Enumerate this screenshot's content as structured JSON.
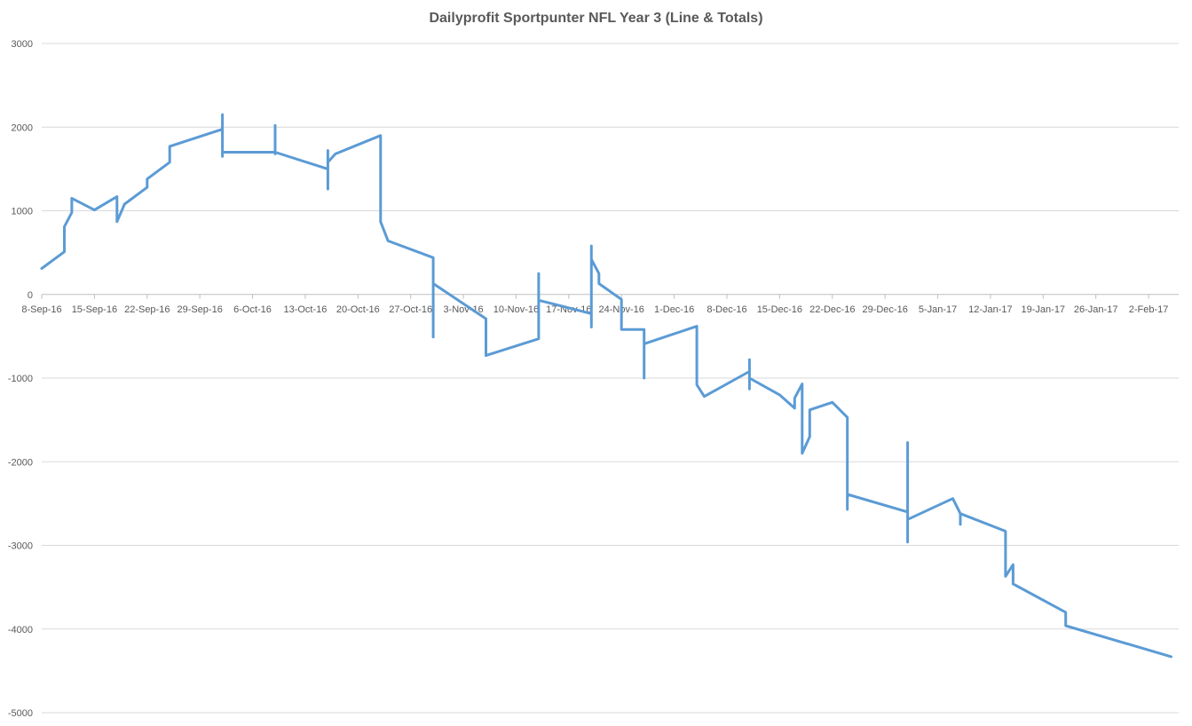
{
  "chart_data": {
    "type": "line",
    "title": "Dailyprofit Sportpunter NFL Year 3 (Line & Totals)",
    "xlabel": "",
    "ylabel": "",
    "ylim": [
      -5000,
      3000
    ],
    "yticks": [
      3000,
      2000,
      1000,
      0,
      -1000,
      -2000,
      -3000,
      -4000,
      -5000
    ],
    "xlim": [
      "2016-09-08",
      "2017-02-06"
    ],
    "xticks": [
      "8-Sep-16",
      "15-Sep-16",
      "22-Sep-16",
      "29-Sep-16",
      "6-Oct-16",
      "13-Oct-16",
      "20-Oct-16",
      "27-Oct-16",
      "3-Nov-16",
      "10-Nov-16",
      "17-Nov-16",
      "24-Nov-16",
      "1-Dec-16",
      "8-Dec-16",
      "15-Dec-16",
      "22-Dec-16",
      "29-Dec-16",
      "5-Jan-17",
      "12-Jan-17",
      "19-Jan-17",
      "26-Jan-17",
      "2-Feb-17"
    ],
    "grid": true,
    "legend": "none",
    "line_color": "#5b9bd5",
    "series": [
      {
        "values": [
          [
            "2016-09-08",
            310
          ],
          [
            "2016-09-11",
            510
          ],
          [
            "2016-09-11",
            810
          ],
          [
            "2016-09-12",
            980
          ],
          [
            "2016-09-12",
            1150
          ],
          [
            "2016-09-15",
            1010
          ],
          [
            "2016-09-18",
            1170
          ],
          [
            "2016-09-18",
            870
          ],
          [
            "2016-09-19",
            1080
          ],
          [
            "2016-09-22",
            1280
          ],
          [
            "2016-09-22",
            1380
          ],
          [
            "2016-09-25",
            1580
          ],
          [
            "2016-09-25",
            1770
          ],
          [
            "2016-10-02",
            1975
          ],
          [
            "2016-10-02",
            2150
          ],
          [
            "2016-10-02",
            1650
          ],
          [
            "2016-10-02",
            1700
          ],
          [
            "2016-10-09",
            1700
          ],
          [
            "2016-10-09",
            2020
          ],
          [
            "2016-10-09",
            1680
          ],
          [
            "2016-10-09",
            1700
          ],
          [
            "2016-10-16",
            1500
          ],
          [
            "2016-10-16",
            1720
          ],
          [
            "2016-10-16",
            1260
          ],
          [
            "2016-10-16",
            1580
          ],
          [
            "2016-10-17",
            1680
          ],
          [
            "2016-10-23",
            1900
          ],
          [
            "2016-10-23",
            870
          ],
          [
            "2016-10-24",
            640
          ],
          [
            "2016-10-30",
            440
          ],
          [
            "2016-10-30",
            -510
          ],
          [
            "2016-10-30",
            130
          ],
          [
            "2016-11-06",
            -290
          ],
          [
            "2016-11-06",
            -730
          ],
          [
            "2016-11-13",
            -530
          ],
          [
            "2016-11-13",
            250
          ],
          [
            "2016-11-13",
            -70
          ],
          [
            "2016-11-20",
            -230
          ],
          [
            "2016-11-20",
            -390
          ],
          [
            "2016-11-20",
            580
          ],
          [
            "2016-11-20",
            420
          ],
          [
            "2016-11-21",
            250
          ],
          [
            "2016-11-21",
            130
          ],
          [
            "2016-11-24",
            -60
          ],
          [
            "2016-11-24",
            -420
          ],
          [
            "2016-11-27",
            -420
          ],
          [
            "2016-11-27",
            -1000
          ],
          [
            "2016-11-27",
            -590
          ],
          [
            "2016-12-04",
            -380
          ],
          [
            "2016-12-04",
            -1080
          ],
          [
            "2016-12-05",
            -1220
          ],
          [
            "2016-12-11",
            -920
          ],
          [
            "2016-12-11",
            -780
          ],
          [
            "2016-12-11",
            -1130
          ],
          [
            "2016-12-11",
            -1000
          ],
          [
            "2016-12-15",
            -1200
          ],
          [
            "2016-12-17",
            -1360
          ],
          [
            "2016-12-17",
            -1240
          ],
          [
            "2016-12-18",
            -1070
          ],
          [
            "2016-12-18",
            -1900
          ],
          [
            "2016-12-19",
            -1700
          ],
          [
            "2016-12-19",
            -1380
          ],
          [
            "2016-12-22",
            -1290
          ],
          [
            "2016-12-24",
            -1470
          ],
          [
            "2016-12-24",
            -2570
          ],
          [
            "2016-12-24",
            -2390
          ],
          [
            "2017-01-01",
            -2600
          ],
          [
            "2017-01-01",
            -1770
          ],
          [
            "2017-01-01",
            -2960
          ],
          [
            "2017-01-01",
            -2690
          ],
          [
            "2017-01-07",
            -2440
          ],
          [
            "2017-01-08",
            -2620
          ],
          [
            "2017-01-08",
            -2750
          ],
          [
            "2017-01-08",
            -2620
          ],
          [
            "2017-01-14",
            -2830
          ],
          [
            "2017-01-14",
            -3370
          ],
          [
            "2017-01-15",
            -3230
          ],
          [
            "2017-01-15",
            -3460
          ],
          [
            "2017-01-22",
            -3800
          ],
          [
            "2017-01-22",
            -3960
          ],
          [
            "2017-02-05",
            -4330
          ]
        ]
      }
    ]
  }
}
